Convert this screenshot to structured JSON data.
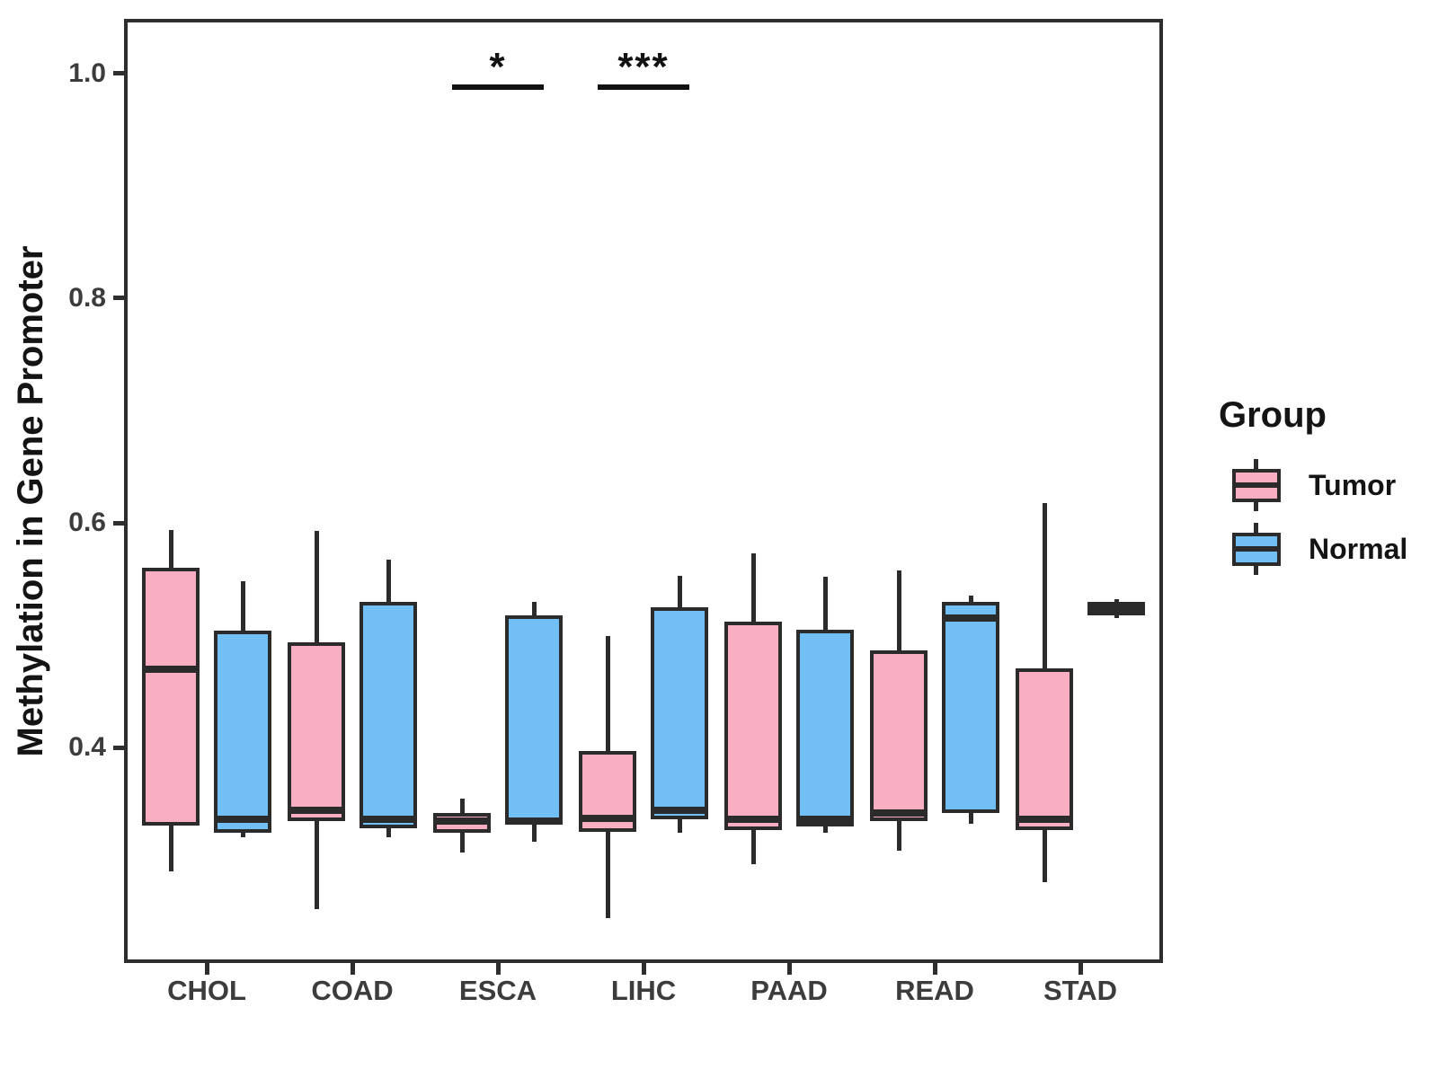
{
  "figure": {
    "y_axis_title": "Methylation in Gene Promoter",
    "legend": {
      "title": "Group",
      "items": [
        {
          "label": "Tumor",
          "color": "#F9AEC1"
        },
        {
          "label": "Normal",
          "color": "#72BFF5"
        }
      ]
    }
  },
  "chart_data": {
    "type": "grouped_boxplot",
    "title": "",
    "xlabel": "",
    "ylabel": "Methylation in Gene Promoter",
    "categories": [
      "CHOL",
      "COAD",
      "ESCA",
      "LIHC",
      "PAAD",
      "READ",
      "STAD"
    ],
    "groups": [
      "Tumor",
      "Normal"
    ],
    "group_colors": {
      "Tumor": "#F9AEC1",
      "Normal": "#72BFF5"
    },
    "stroke_color": "#2b2b2b",
    "y_ticks": [
      "0.4",
      "0.6",
      "0.8",
      "1.0"
    ],
    "y_tick_values": [
      0.4,
      0.6,
      0.8,
      1.0
    ],
    "y_domain": [
      0.21,
      1.047
    ],
    "grid": false,
    "legend_position": "right",
    "boxes": [
      {
        "category": "CHOL",
        "group": "Tumor",
        "whisker_low": 0.29,
        "q1": 0.331,
        "median": 0.47,
        "q3": 0.56,
        "whisker_high": 0.594
      },
      {
        "category": "CHOL",
        "group": "Normal",
        "whisker_low": 0.32,
        "q1": 0.324,
        "median": 0.336,
        "q3": 0.504,
        "whisker_high": 0.548
      },
      {
        "category": "COAD",
        "group": "Tumor",
        "whisker_low": 0.256,
        "q1": 0.335,
        "median": 0.344,
        "q3": 0.494,
        "whisker_high": 0.593
      },
      {
        "category": "COAD",
        "group": "Normal",
        "whisker_low": 0.32,
        "q1": 0.328,
        "median": 0.336,
        "q3": 0.53,
        "whisker_high": 0.567
      },
      {
        "category": "ESCA",
        "group": "Tumor",
        "whisker_low": 0.307,
        "q1": 0.324,
        "median": 0.335,
        "q3": 0.342,
        "whisker_high": 0.355
      },
      {
        "category": "ESCA",
        "group": "Normal",
        "whisker_low": 0.316,
        "q1": 0.332,
        "median": 0.335,
        "q3": 0.518,
        "whisker_high": 0.53
      },
      {
        "category": "LIHC",
        "group": "Tumor",
        "whisker_low": 0.248,
        "q1": 0.325,
        "median": 0.337,
        "q3": 0.397,
        "whisker_high": 0.499
      },
      {
        "category": "LIHC",
        "group": "Normal",
        "whisker_low": 0.324,
        "q1": 0.336,
        "median": 0.344,
        "q3": 0.525,
        "whisker_high": 0.553
      },
      {
        "category": "PAAD",
        "group": "Tumor",
        "whisker_low": 0.296,
        "q1": 0.327,
        "median": 0.336,
        "q3": 0.512,
        "whisker_high": 0.573
      },
      {
        "category": "PAAD",
        "group": "Normal",
        "whisker_low": 0.324,
        "q1": 0.33,
        "median": 0.336,
        "q3": 0.505,
        "whisker_high": 0.552
      },
      {
        "category": "READ",
        "group": "Tumor",
        "whisker_low": 0.308,
        "q1": 0.335,
        "median": 0.342,
        "q3": 0.487,
        "whisker_high": 0.558
      },
      {
        "category": "READ",
        "group": "Normal",
        "whisker_low": 0.332,
        "q1": 0.342,
        "median": 0.515,
        "q3": 0.53,
        "whisker_high": 0.535
      },
      {
        "category": "STAD",
        "group": "Tumor",
        "whisker_low": 0.28,
        "q1": 0.327,
        "median": 0.336,
        "q3": 0.471,
        "whisker_high": 0.618
      },
      {
        "category": "STAD",
        "group": "Normal",
        "whisker_low": 0.515,
        "q1": 0.518,
        "median": 0.524,
        "q3": 0.53,
        "whisker_high": 0.532
      }
    ],
    "significance": [
      {
        "category": "ESCA",
        "label": "*",
        "bar_y": 0.99
      },
      {
        "category": "LIHC",
        "label": "***",
        "bar_y": 0.99
      }
    ]
  }
}
